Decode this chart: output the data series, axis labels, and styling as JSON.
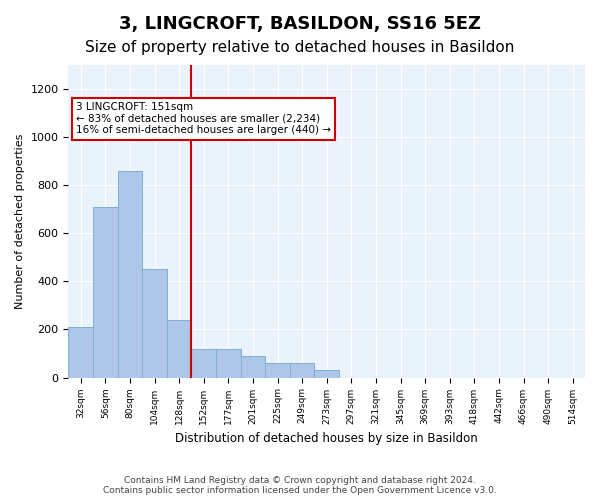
{
  "title": "3, LINGCROFT, BASILDON, SS16 5EZ",
  "subtitle": "Size of property relative to detached houses in Basildon",
  "xlabel": "Distribution of detached houses by size in Basildon",
  "ylabel": "Number of detached properties",
  "footer": "Contains HM Land Registry data © Crown copyright and database right 2024.\nContains public sector information licensed under the Open Government Licence v3.0.",
  "bin_labels": [
    "32sqm",
    "56sqm",
    "80sqm",
    "104sqm",
    "128sqm",
    "152sqm",
    "177sqm",
    "201sqm",
    "225sqm",
    "249sqm",
    "273sqm",
    "297sqm",
    "321sqm",
    "345sqm",
    "369sqm",
    "393sqm",
    "418sqm",
    "442sqm",
    "466sqm",
    "490sqm",
    "514sqm"
  ],
  "bar_values": [
    210,
    710,
    860,
    450,
    240,
    120,
    120,
    90,
    60,
    60,
    30,
    0,
    0,
    0,
    0,
    0,
    0,
    0,
    0,
    0,
    0
  ],
  "bar_color": "#AEC6E8",
  "bar_edge_color": "#7BAFD4",
  "property_line_x": 5,
  "property_line_label": "3 LINGCROFT: 151sqm",
  "annotation_line1": "← 83% of detached houses are smaller (2,234)",
  "annotation_line2": "16% of semi-detached houses are larger (440) →",
  "annotation_box_color": "#ffffff",
  "annotation_box_edge": "#cc0000",
  "vline_color": "#cc0000",
  "ylim": [
    0,
    1300
  ],
  "yticks": [
    0,
    200,
    400,
    600,
    800,
    1000,
    1200
  ],
  "title_fontsize": 13,
  "subtitle_fontsize": 11,
  "plot_bg_color": "#EAF2FB"
}
